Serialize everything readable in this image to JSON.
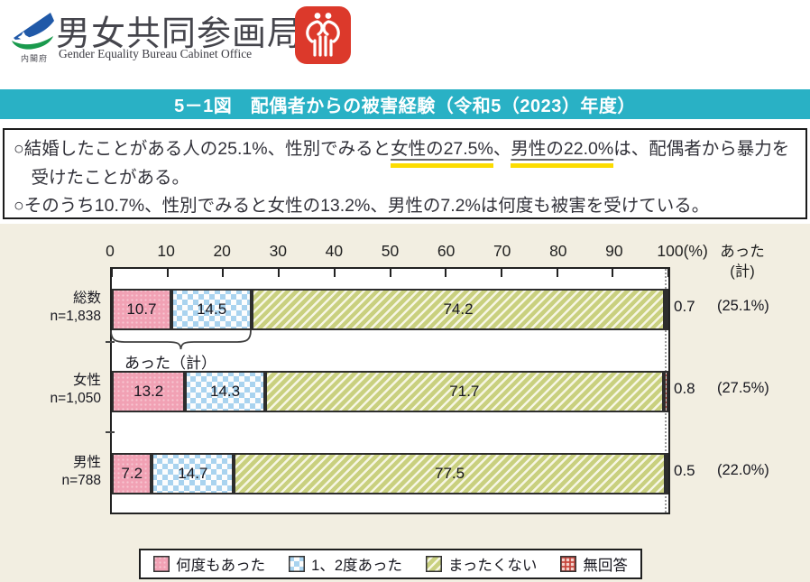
{
  "header": {
    "cabinet_office_label": "内閣府",
    "agency_name": "男女共同参画局",
    "agency_name_en": "Gender Equality Bureau Cabinet Office"
  },
  "title_bar": {
    "text": "5－1図　配偶者からの被害経験（令和5（2023）年度）"
  },
  "summary": {
    "lines": [
      [
        {
          "t": "○結婚したことがある人の25.1%、性別でみると",
          "hl": false
        },
        {
          "t": "女性の27.5%",
          "hl": true
        },
        {
          "t": "、",
          "hl": false
        },
        {
          "t": "男性の22.0%",
          "hl": true
        },
        {
          "t": "は、配偶者から暴力を受けたことがある。",
          "hl": false
        }
      ],
      [
        {
          "t": "○そのうち10.7%、性別でみると女性の13.2%、男性の7.2%は何度も被害を受けている。",
          "hl": false
        }
      ]
    ]
  },
  "chart_data": {
    "type": "bar",
    "orientation": "horizontal",
    "stacked": true,
    "title": "5－1図　配偶者からの被害経験（令和5（2023）年度）",
    "x_ticks": [
      0,
      10,
      20,
      30,
      40,
      50,
      60,
      70,
      80,
      90,
      100
    ],
    "x_unit": "(%)",
    "xlim": [
      0,
      100
    ],
    "grid": false,
    "legend_position": "bottom",
    "categories": [
      "総数",
      "女性",
      "男性"
    ],
    "category_n": [
      "n=1,838",
      "n=1,050",
      "n=788"
    ],
    "series": [
      {
        "key": "many-times",
        "name": "何度もあった",
        "values": [
          10.7,
          13.2,
          7.2
        ],
        "color": "#f1a1b4"
      },
      {
        "key": "once-or-twice",
        "name": "1、2度あった",
        "values": [
          14.5,
          14.3,
          14.7
        ],
        "color": "#a9d3ef"
      },
      {
        "key": "never",
        "name": "まったくない",
        "values": [
          74.2,
          71.7,
          77.5
        ],
        "color": "#c9d07f"
      },
      {
        "key": "no-answer",
        "name": "無回答",
        "values": [
          0.7,
          0.8,
          0.5
        ],
        "color": "#e98f80"
      }
    ],
    "atta_total_header": [
      "あった",
      "(計)"
    ],
    "atta_totals": [
      "(25.1%)",
      "(27.5%)",
      "(22.0%)"
    ],
    "brace_annotation": "あった（計）"
  },
  "colors": {
    "title_bar_bg": "#29b1c5",
    "chart_bg": "#f2eee1",
    "highlight": "#fcdc00",
    "bureau_icon_bg": "#dc392b"
  }
}
